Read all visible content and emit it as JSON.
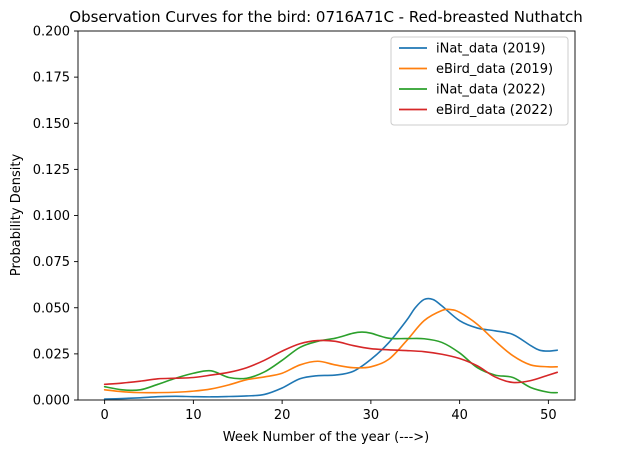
{
  "chart_data": {
    "type": "line",
    "title": "Observation Curves for the bird: 0716A71C - Red-breasted Nuthatch",
    "xlabel": "Week Number of the year (--->)",
    "ylabel": "Probability Density",
    "xlim": [
      -3,
      53
    ],
    "ylim": [
      0,
      0.2
    ],
    "xticks": [
      0,
      10,
      20,
      30,
      40,
      50
    ],
    "yticks": [
      0.0,
      0.025,
      0.05,
      0.075,
      0.1,
      0.125,
      0.15,
      0.175,
      0.2
    ],
    "ytick_labels": [
      "0.000",
      "0.025",
      "0.050",
      "0.075",
      "0.100",
      "0.125",
      "0.150",
      "0.175",
      "0.200"
    ],
    "xtick_labels": [
      "0",
      "10",
      "20",
      "30",
      "40",
      "50"
    ],
    "grid": false,
    "legend_position": "top-right",
    "series": [
      {
        "name": "iNat_data (2019)",
        "color": "#1f77b4",
        "x": [
          0,
          2,
          4,
          6,
          8,
          10,
          12,
          14,
          16,
          18,
          20,
          22,
          24,
          26,
          28,
          30,
          32,
          34,
          35,
          36,
          37,
          38,
          40,
          42,
          44,
          46,
          48,
          49,
          50,
          51
        ],
        "y": [
          0.0005,
          0.0008,
          0.0012,
          0.0018,
          0.002,
          0.0018,
          0.0017,
          0.0019,
          0.0022,
          0.003,
          0.0065,
          0.0115,
          0.0132,
          0.0135,
          0.0155,
          0.022,
          0.031,
          0.043,
          0.05,
          0.0545,
          0.0545,
          0.051,
          0.043,
          0.039,
          0.0375,
          0.0355,
          0.0295,
          0.027,
          0.0265,
          0.027
        ]
      },
      {
        "name": "eBird_data (2019)",
        "color": "#ff7f0e",
        "x": [
          0,
          2,
          4,
          6,
          8,
          10,
          12,
          14,
          16,
          18,
          20,
          22,
          24,
          26,
          28,
          30,
          32,
          34,
          36,
          38,
          39,
          40,
          42,
          44,
          46,
          48,
          50,
          51
        ],
        "y": [
          0.0055,
          0.0045,
          0.004,
          0.004,
          0.0042,
          0.0048,
          0.006,
          0.0082,
          0.011,
          0.0125,
          0.0145,
          0.019,
          0.021,
          0.019,
          0.0175,
          0.018,
          0.022,
          0.032,
          0.043,
          0.0485,
          0.049,
          0.0475,
          0.041,
          0.032,
          0.024,
          0.019,
          0.018,
          0.018
        ]
      },
      {
        "name": "iNat_data (2022)",
        "color": "#2ca02c",
        "x": [
          0,
          2,
          4,
          6,
          8,
          10,
          12,
          14,
          16,
          18,
          20,
          22,
          24,
          26,
          28,
          29,
          30,
          32,
          34,
          36,
          38,
          40,
          42,
          44,
          46,
          48,
          50,
          51
        ],
        "y": [
          0.0072,
          0.0055,
          0.0055,
          0.0085,
          0.0118,
          0.0145,
          0.0158,
          0.0122,
          0.0118,
          0.0152,
          0.0215,
          0.0285,
          0.0318,
          0.0335,
          0.0362,
          0.0368,
          0.0362,
          0.0335,
          0.0333,
          0.0332,
          0.0312,
          0.0255,
          0.0175,
          0.0135,
          0.0122,
          0.0068,
          0.0042,
          0.004
        ]
      },
      {
        "name": "eBird_data (2022)",
        "color": "#d62728",
        "x": [
          0,
          2,
          4,
          6,
          8,
          10,
          12,
          14,
          16,
          18,
          20,
          22,
          24,
          26,
          28,
          30,
          32,
          34,
          36,
          38,
          40,
          42,
          44,
          46,
          48,
          50,
          51
        ],
        "y": [
          0.0085,
          0.0092,
          0.0102,
          0.0115,
          0.0118,
          0.0122,
          0.0135,
          0.015,
          0.0175,
          0.0215,
          0.0265,
          0.0305,
          0.0322,
          0.0318,
          0.0295,
          0.0278,
          0.0272,
          0.0268,
          0.0262,
          0.0248,
          0.0225,
          0.0185,
          0.0125,
          0.0095,
          0.0105,
          0.0135,
          0.015
        ]
      }
    ]
  }
}
